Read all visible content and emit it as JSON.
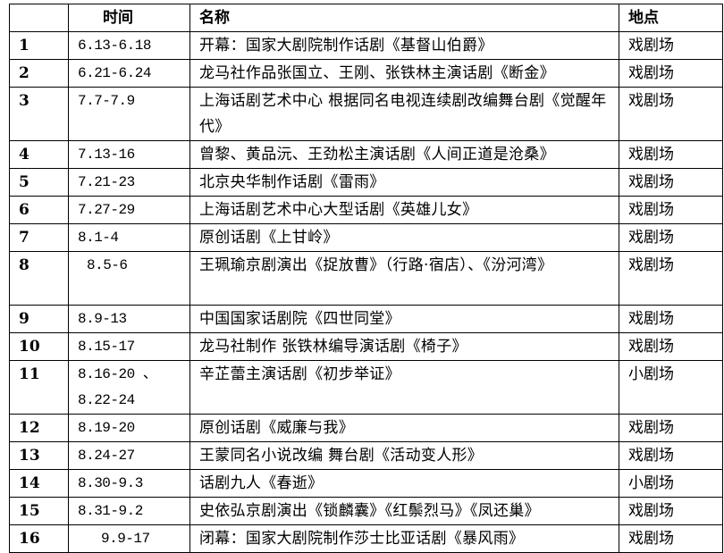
{
  "table": {
    "headers": [
      "",
      "时间",
      "名称",
      "地点"
    ],
    "rows": [
      {
        "no": "1",
        "date": "6.13-6.18",
        "name": "开幕：国家大剧院制作话剧《基督山伯爵》",
        "venue": "戏剧场"
      },
      {
        "no": "2",
        "date": "6.21-6.24",
        "name": "龙马社作品张国立、王刚、张铁林主演话剧《断金》",
        "venue": "戏剧场"
      },
      {
        "no": "3",
        "date": "7.7-7.9",
        "name": "上海话剧艺术中心 根据同名电视连续剧改编舞台剧《觉醒年代》",
        "venue": "戏剧场"
      },
      {
        "no": "4",
        "date": "7.13-16",
        "name": "曾黎、黄品沅、王劲松主演话剧《人间正道是沧桑》",
        "venue": "戏剧场"
      },
      {
        "no": "5",
        "date": "7.21-23",
        "name": "北京央华制作话剧《雷雨》",
        "venue": "戏剧场"
      },
      {
        "no": "6",
        "date": "7.27-29",
        "name": "上海话剧艺术中心大型话剧《英雄儿女》",
        "venue": "戏剧场"
      },
      {
        "no": "7",
        "date": "8.1-4",
        "name": "原创话剧《上甘岭》",
        "venue": "戏剧场"
      },
      {
        "no": "8",
        "date": "8.5-6",
        "name": "王珮瑜京剧演出《捉放曹》（行路·宿店）、《汾河湾》",
        "venue": "戏剧场"
      },
      {
        "no": "9",
        "date": "8.9-13",
        "name": "中国国家话剧院《四世同堂》",
        "venue": "戏剧场"
      },
      {
        "no": "10",
        "date": "8.15-17",
        "name": "龙马社制作 张铁林编导演话剧《椅子》",
        "venue": "戏剧场"
      },
      {
        "no": "11",
        "date": "8.16-20 、 8.22-24",
        "name": "辛芷蕾主演话剧《初步举证》",
        "venue": "小剧场"
      },
      {
        "no": "12",
        "date": "8.19-20",
        "name": "原创话剧《威廉与我》",
        "venue": "戏剧场"
      },
      {
        "no": "13",
        "date": "8.24-27",
        "name": "王蒙同名小说改编 舞台剧《活动变人形》",
        "venue": "戏剧场"
      },
      {
        "no": "14",
        "date": "8.30-9.3",
        "name": "话剧九人《春逝》",
        "venue": "小剧场"
      },
      {
        "no": "15",
        "date": "8.31-9.2",
        "name": "史依弘京剧演出《锁麟囊》《红鬃烈马》《凤还巢》",
        "venue": "戏剧场"
      },
      {
        "no": "16",
        "date": "9.9-17",
        "name": "闭幕：国家大剧院制作莎士比亚话剧《暴风雨》",
        "venue": "戏剧场"
      }
    ]
  }
}
